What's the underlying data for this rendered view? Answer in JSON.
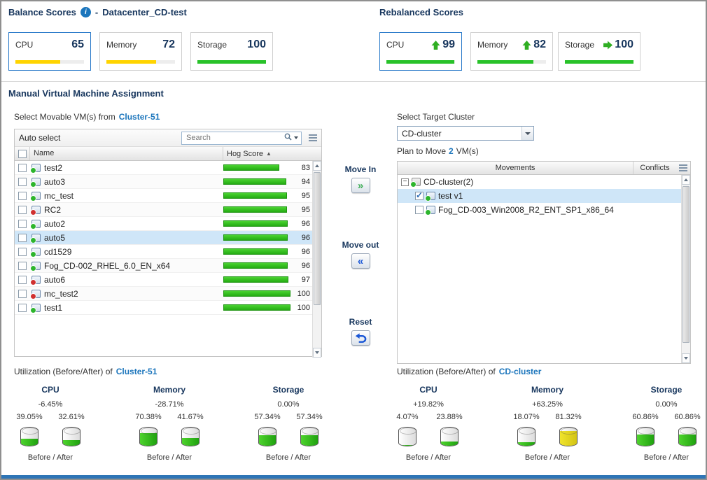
{
  "colors": {
    "accent_blue": "#1b75bc",
    "heading_navy": "#17365d",
    "score_yellow": "#ffd400",
    "score_green": "#28c229",
    "hog_bar_green": "#30c61d",
    "selection_blue": "#cfe6f8",
    "arrow_green": "#2fae22"
  },
  "icons": {
    "info": "i",
    "sort_ascending": "▲",
    "expander_collapse": "−",
    "move_in": "»",
    "move_out": "«"
  },
  "header": {
    "balance_title": "Balance Scores",
    "separator": "-",
    "datacenter_name": "Datacenter_CD-test",
    "rebalanced_title": "Rebalanced Scores"
  },
  "balance_scores": [
    {
      "label": "CPU",
      "value": 65,
      "bar_color": "#ffd400",
      "state": "selected"
    },
    {
      "label": "Memory",
      "value": 72,
      "bar_color": "#ffd400"
    },
    {
      "label": "Storage",
      "value": 100,
      "bar_color": "#28c229"
    }
  ],
  "rebalanced_scores": [
    {
      "label": "CPU",
      "value": 99,
      "arrow": "up",
      "bar_color": "#28c229",
      "state": "selected"
    },
    {
      "label": "Memory",
      "value": 82,
      "arrow": "up",
      "bar_color": "#28c229"
    },
    {
      "label": "Storage",
      "value": 100,
      "arrow": "right",
      "bar_color": "#28c229"
    }
  ],
  "assignment": {
    "title": "Manual Virtual Machine Assignment",
    "source_prefix": "Select Movable VM(s) from",
    "source_cluster": "Cluster-51",
    "target_label": "Select Target Cluster",
    "target_cluster": "CD-cluster",
    "plan_prefix": "Plan to Move",
    "plan_count": "2",
    "plan_suffix": "VM(s)"
  },
  "vm_grid": {
    "auto_select_label": "Auto select",
    "search_placeholder": "Search",
    "columns": {
      "name": "Name",
      "hog_score": "Hog Score"
    },
    "rows": [
      {
        "name": "test2",
        "score": 83,
        "power": "on"
      },
      {
        "name": "auto3",
        "score": 94,
        "power": "on"
      },
      {
        "name": "mc_test",
        "score": 95,
        "power": "on"
      },
      {
        "name": "RC2",
        "score": 95,
        "power": "off"
      },
      {
        "name": "auto2",
        "score": 96,
        "power": "on"
      },
      {
        "name": "auto5",
        "score": 96,
        "power": "on",
        "state": "selected"
      },
      {
        "name": "cd1529",
        "score": 96,
        "power": "on"
      },
      {
        "name": "Fog_CD-002_RHEL_6.0_EN_x64",
        "score": 96,
        "power": "on"
      },
      {
        "name": "auto6",
        "score": 97,
        "power": "off"
      },
      {
        "name": "mc_test2",
        "score": 100,
        "power": "off"
      },
      {
        "name": "test1",
        "score": 100,
        "power": "on"
      }
    ]
  },
  "actions": {
    "move_in": "Move In",
    "move_out": "Move out",
    "reset": "Reset"
  },
  "movements_grid": {
    "columns": {
      "movements": "Movements",
      "conflicts": "Conflicts"
    },
    "cluster_node": "CD-cluster(2)",
    "rows": [
      {
        "name": "test v1",
        "checked": "checked",
        "power": "on",
        "state": "selected"
      },
      {
        "name": "Fog_CD-003_Win2008_R2_ENT_SP1_x86_64",
        "checked": "",
        "power": "on"
      }
    ]
  },
  "utilization_left": {
    "title_prefix": "Utilization (Before/After) of",
    "cluster": "Cluster-51",
    "caption": "Before / After",
    "groups": [
      {
        "label": "CPU",
        "delta": "-6.45%",
        "before": "39.05%",
        "after": "32.61%",
        "before_color": "green",
        "after_color": "green"
      },
      {
        "label": "Memory",
        "delta": "-28.71%",
        "before": "70.38%",
        "after": "41.67%",
        "before_color": "green",
        "after_color": "green"
      },
      {
        "label": "Storage",
        "delta": "0.00%",
        "before": "57.34%",
        "after": "57.34%",
        "before_color": "green",
        "after_color": "green"
      }
    ]
  },
  "utilization_right": {
    "title_prefix": "Utilization (Before/After) of",
    "cluster": "CD-cluster",
    "caption": "Before / After",
    "groups": [
      {
        "label": "CPU",
        "delta": "+19.82%",
        "before": "4.07%",
        "after": "23.88%",
        "before_color": "green",
        "after_color": "green"
      },
      {
        "label": "Memory",
        "delta": "+63.25%",
        "before": "18.07%",
        "after": "81.32%",
        "before_color": "green",
        "after_color": "yellow"
      },
      {
        "label": "Storage",
        "delta": "0.00%",
        "before": "60.86%",
        "after": "60.86%",
        "before_color": "green",
        "after_color": "green"
      }
    ]
  }
}
